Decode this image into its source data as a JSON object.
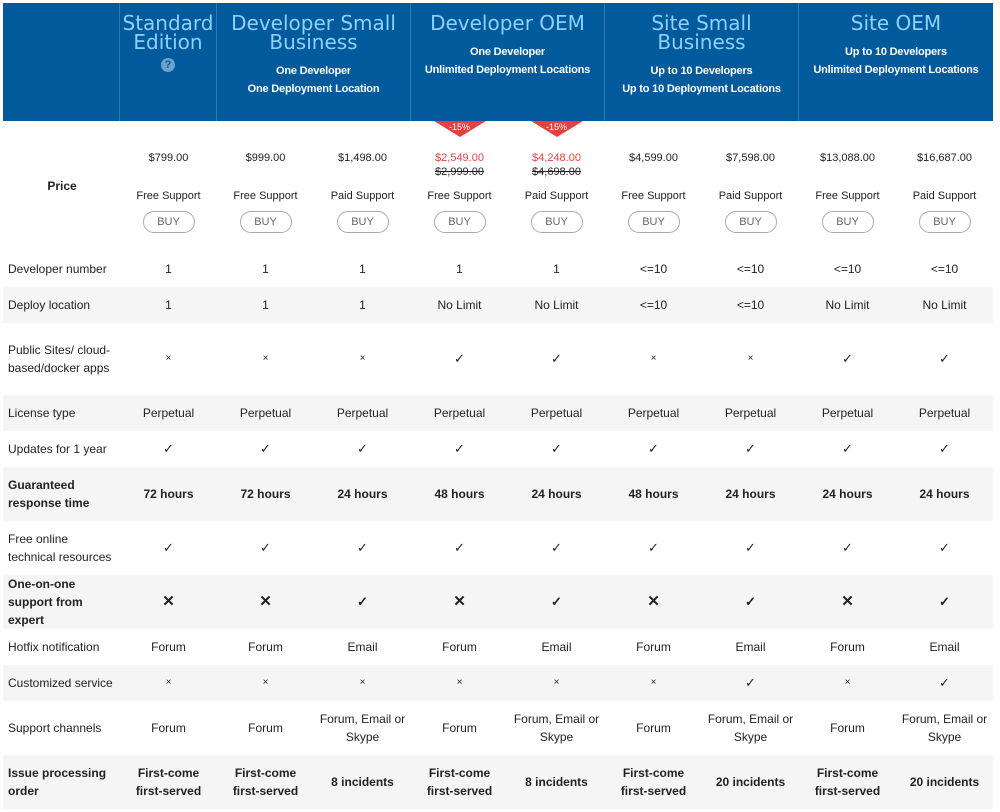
{
  "header": {
    "standard": {
      "title": "Standard Edition",
      "help": "?"
    },
    "dev_small": {
      "title": "Developer Small Business",
      "sub1": "One Developer",
      "sub2": "One Deployment Location"
    },
    "dev_oem": {
      "title": "Developer OEM",
      "sub1": "One Developer",
      "sub2": "Unlimited Deployment Locations"
    },
    "site_small": {
      "title": "Site Small Business",
      "sub1": "Up to 10 Developers",
      "sub2": "Up to 10 Deployment Locations"
    },
    "site_oem": {
      "title": "Site OEM",
      "sub1": "Up to 10 Developers",
      "sub2": "Unlimited Deployment Locations"
    }
  },
  "price": {
    "label": "Price",
    "buy_label": "BUY",
    "cols": [
      {
        "price": "$799.00",
        "support": "Free Support"
      },
      {
        "price": "$999.00",
        "support": "Free Support"
      },
      {
        "price": "$1,498.00",
        "support": "Paid Support"
      },
      {
        "price": "$2,549.00",
        "old": "$2,999.00",
        "support": "Free Support",
        "discount": "-15%"
      },
      {
        "price": "$4,248.00",
        "old": "$4,698.00",
        "support": "Paid Support",
        "discount": "-15%"
      },
      {
        "price": "$4,599.00",
        "support": "Free Support"
      },
      {
        "price": "$7,598.00",
        "support": "Paid Support"
      },
      {
        "price": "$13,088.00",
        "support": "Free Support"
      },
      {
        "price": "$16,687.00",
        "support": "Paid Support"
      }
    ],
    "accent_color": "#e8413c"
  },
  "rows": [
    {
      "label": "Developer number",
      "values": [
        "1",
        "1",
        "1",
        "1",
        "1",
        "<=10",
        "<=10",
        "<=10",
        "<=10"
      ]
    },
    {
      "label": "Deploy location",
      "values": [
        "1",
        "1",
        "1",
        "No Limit",
        "No Limit",
        "<=10",
        "<=10",
        "No Limit",
        "No Limit"
      ]
    },
    {
      "label": "Public Sites/ cloud-based/docker apps",
      "values": [
        "×",
        "×",
        "×",
        "✓",
        "✓",
        "×",
        "×",
        "✓",
        "✓"
      ]
    },
    {
      "label": "License type",
      "values": [
        "Perpetual",
        "Perpetual",
        "Perpetual",
        "Perpetual",
        "Perpetual",
        "Perpetual",
        "Perpetual",
        "Perpetual",
        "Perpetual"
      ]
    },
    {
      "label": "Updates for 1 year",
      "values": [
        "✓",
        "✓",
        "✓",
        "✓",
        "✓",
        "✓",
        "✓",
        "✓",
        "✓"
      ]
    },
    {
      "label": "Guaranteed response time",
      "bold": true,
      "values": [
        "72 hours",
        "72 hours",
        "24 hours",
        "48 hours",
        "24 hours",
        "48 hours",
        "24 hours",
        "24 hours",
        "24 hours"
      ]
    },
    {
      "label": "Free online technical resources",
      "values": [
        "✓",
        "✓",
        "✓",
        "✓",
        "✓",
        "✓",
        "✓",
        "✓",
        "✓"
      ]
    },
    {
      "label": "One-on-one support from expert",
      "bold": true,
      "values": [
        "✕",
        "✕",
        "✓",
        "✕",
        "✓",
        "✕",
        "✓",
        "✕",
        "✓"
      ]
    },
    {
      "label": "Hotfix notification",
      "values": [
        "Forum",
        "Forum",
        "Email",
        "Forum",
        "Email",
        "Forum",
        "Email",
        "Forum",
        "Email"
      ]
    },
    {
      "label": "Customized service",
      "values": [
        "×",
        "×",
        "×",
        "×",
        "×",
        "×",
        "✓",
        "×",
        "✓"
      ]
    },
    {
      "label": "Support channels",
      "values": [
        "Forum",
        "Forum",
        "Forum, Email or Skype",
        "Forum",
        "Forum, Email or Skype",
        "Forum",
        "Forum, Email or Skype",
        "Forum",
        "Forum, Email or Skype"
      ]
    },
    {
      "label": "Issue processing order",
      "bold": true,
      "values": [
        "First-come first-served",
        "First-come first-served",
        "8 incidents",
        "First-come first-served",
        "8 incidents",
        "First-come first-served",
        "20 incidents",
        "First-come first-served",
        "20 incidents"
      ]
    }
  ],
  "colors": {
    "header_bg": "#005a9c",
    "header_title": "#8fd0ff"
  }
}
